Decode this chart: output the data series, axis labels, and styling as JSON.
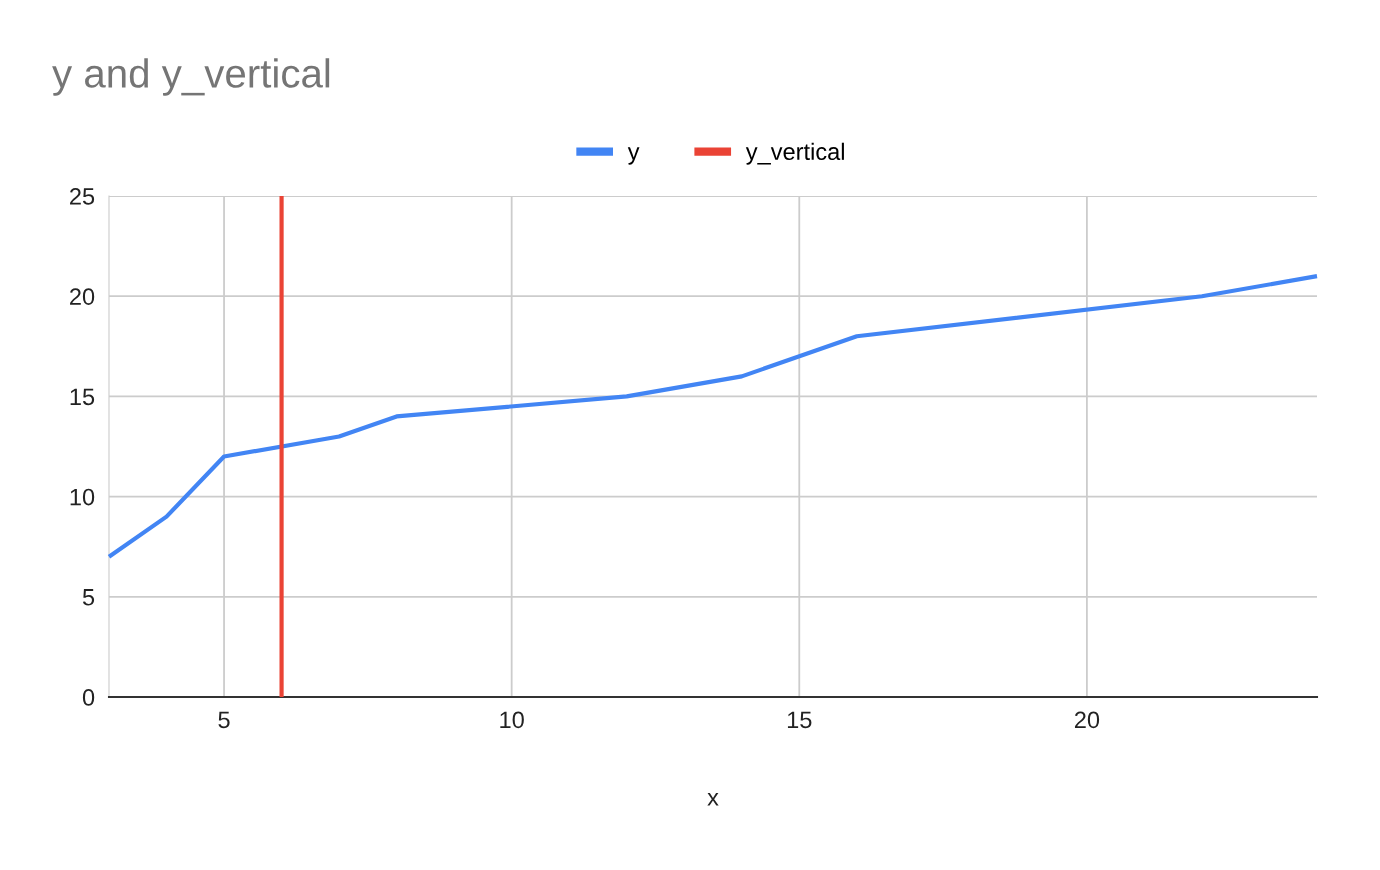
{
  "chart_data": {
    "type": "line",
    "title": "y and y_vertical",
    "xlabel": "x",
    "series": [
      {
        "name": "y",
        "color": "#4285f4",
        "x": [
          3,
          4,
          5,
          7,
          8,
          12,
          14,
          16,
          22,
          24
        ],
        "values": [
          7,
          9,
          12,
          13,
          14,
          15,
          16,
          18,
          20,
          21
        ]
      },
      {
        "name": "y_vertical",
        "color": "#ea4335",
        "x": [
          6,
          6
        ],
        "values": [
          0,
          25
        ]
      }
    ],
    "xlim": [
      3,
      24
    ],
    "xticks": [
      5,
      10,
      15,
      20
    ],
    "ylim": [
      0,
      25
    ],
    "yticks": [
      0,
      5,
      10,
      15,
      20,
      25
    ],
    "grid": true,
    "legend": "top",
    "marker": "none",
    "line_style": "solid"
  }
}
